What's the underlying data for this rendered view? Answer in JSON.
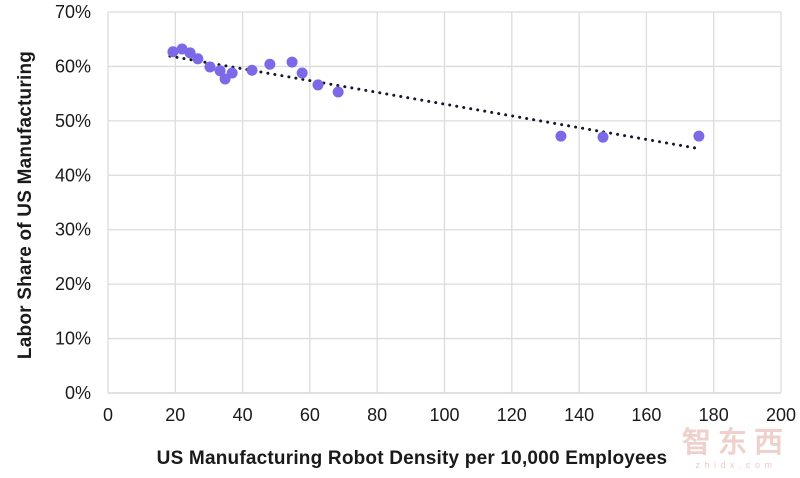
{
  "colors": {
    "point": "#7c69e8",
    "trend": "#17172a",
    "grid": "#dcdcdc",
    "axis_line": "#cfcfcf",
    "text": "#1a1a1a",
    "watermark": "#ecc9c3"
  },
  "chart_data": {
    "type": "scatter",
    "title": "",
    "xlabel": "US Manufacturing Robot Density per 10,000 Employees",
    "ylabel": "Labor Share of US Manufacturing",
    "xlim": [
      0,
      200
    ],
    "ylim": [
      0,
      70
    ],
    "x_ticks": [
      0,
      20,
      40,
      60,
      80,
      100,
      120,
      140,
      160,
      180,
      200
    ],
    "y_ticks": [
      0,
      10,
      20,
      30,
      40,
      50,
      60,
      70
    ],
    "y_tick_suffix": "%",
    "grid": true,
    "legend": "none",
    "points": [
      {
        "x": 19.3,
        "y": 62.7
      },
      {
        "x": 22.0,
        "y": 63.2
      },
      {
        "x": 24.4,
        "y": 62.5
      },
      {
        "x": 26.7,
        "y": 61.4
      },
      {
        "x": 30.3,
        "y": 59.9
      },
      {
        "x": 33.3,
        "y": 59.2
      },
      {
        "x": 34.8,
        "y": 57.7
      },
      {
        "x": 36.9,
        "y": 58.8
      },
      {
        "x": 42.8,
        "y": 59.3
      },
      {
        "x": 48.1,
        "y": 60.4
      },
      {
        "x": 54.7,
        "y": 60.8
      },
      {
        "x": 57.7,
        "y": 58.8
      },
      {
        "x": 62.4,
        "y": 56.6
      },
      {
        "x": 68.4,
        "y": 55.3
      },
      {
        "x": 134.6,
        "y": 47.2
      },
      {
        "x": 147.1,
        "y": 47.0
      },
      {
        "x": 175.6,
        "y": 47.2
      }
    ],
    "trendline": {
      "x1": 18.4,
      "y1": 61.9,
      "x2": 174.7,
      "y2": 45.0,
      "style": "dotted"
    }
  },
  "watermark": {
    "logo_text": "智东西",
    "site_text": "zhidx.com"
  }
}
